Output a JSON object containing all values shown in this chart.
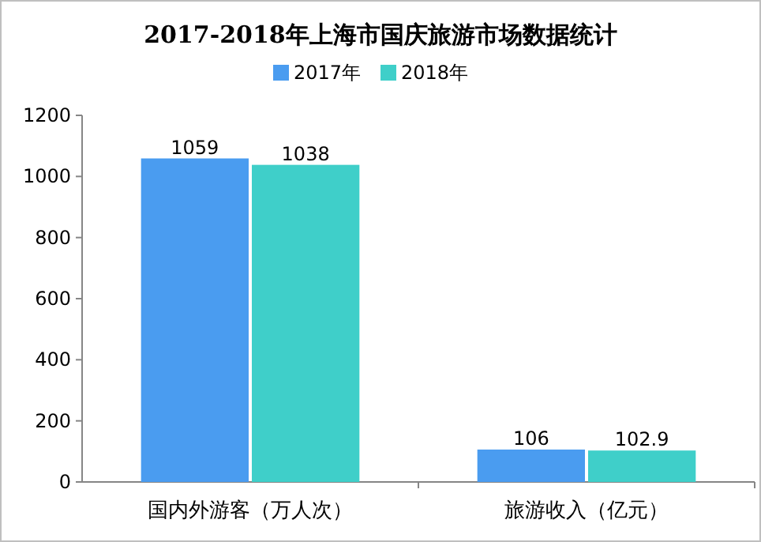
{
  "chart_data": {
    "type": "bar",
    "title": "2017-2018年上海市国庆旅游市场数据统计",
    "categories": [
      "国内外游客（万人次）",
      "旅游收入（亿元）"
    ],
    "series": [
      {
        "name": "2017年",
        "color": "#4a9cf0",
        "values": [
          1059,
          106
        ]
      },
      {
        "name": "2018年",
        "color": "#3fcfc9",
        "values": [
          1038,
          102.9
        ]
      }
    ],
    "ylim": [
      0,
      1200
    ],
    "yticks": [
      0,
      200,
      400,
      600,
      800,
      1000,
      1200
    ],
    "data_labels": true,
    "legend": "top"
  }
}
